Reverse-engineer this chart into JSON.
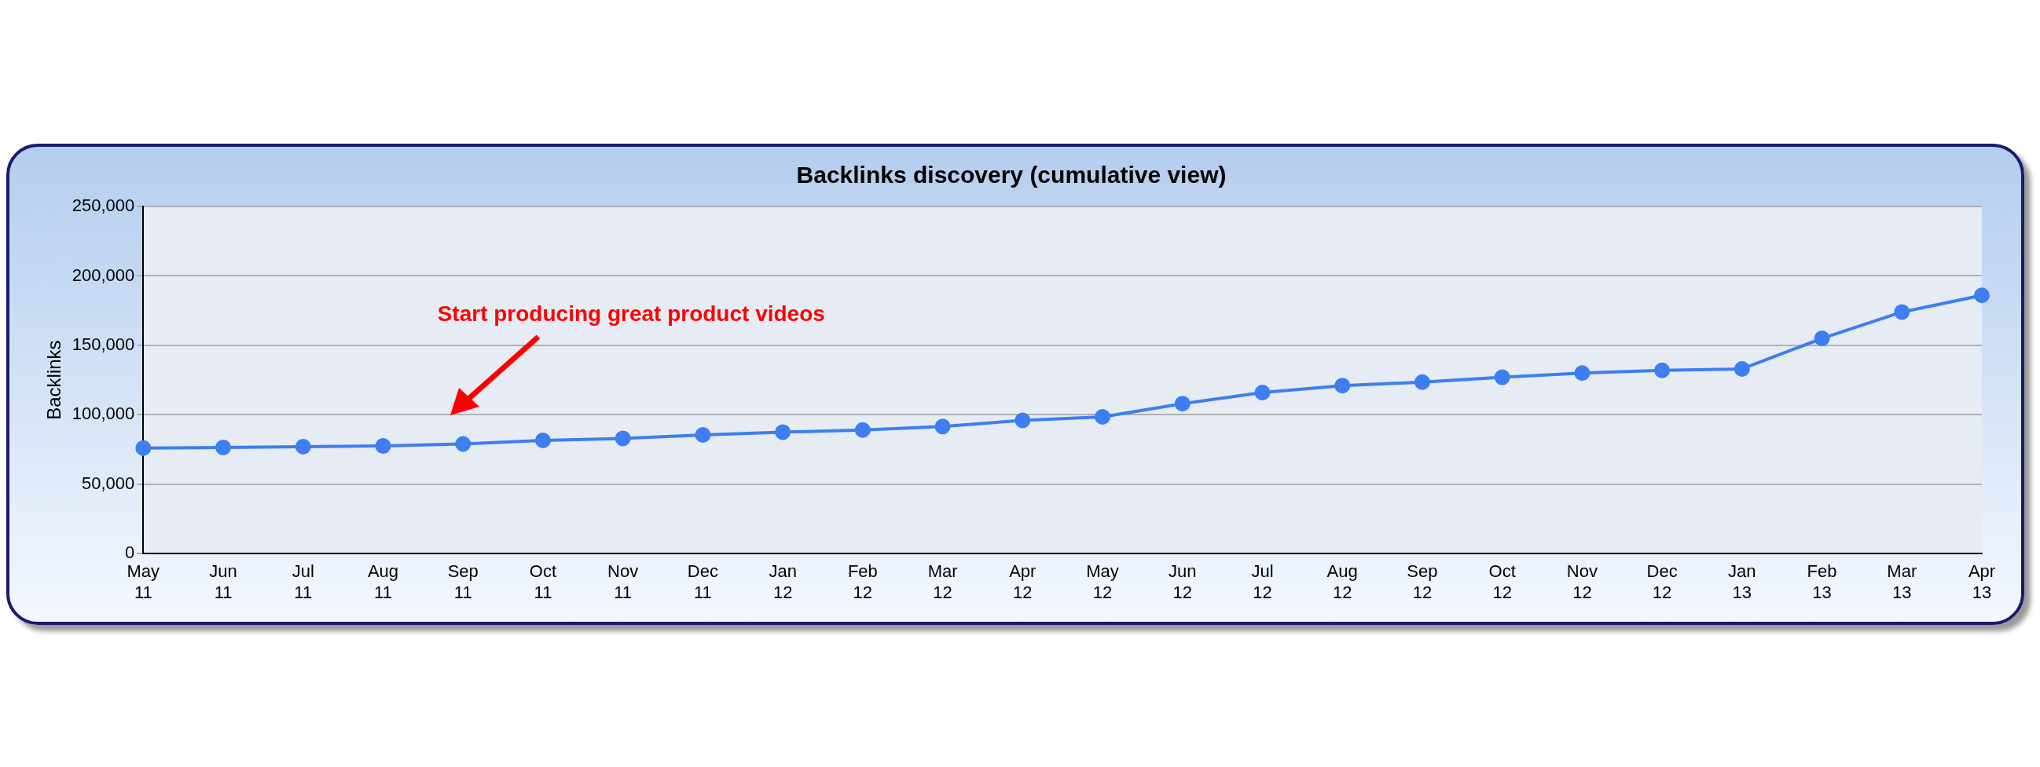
{
  "chart_data": {
    "type": "line",
    "title": "Backlinks discovery (cumulative view)",
    "ylabel": "Backlinks",
    "categories": [
      "May 11",
      "Jun 11",
      "Jul 11",
      "Aug 11",
      "Sep 11",
      "Oct 11",
      "Nov 11",
      "Dec 11",
      "Jan 12",
      "Feb 12",
      "Mar 12",
      "Apr 12",
      "May 12",
      "Jun 12",
      "Jul 12",
      "Aug 12",
      "Sep 12",
      "Oct 12",
      "Nov 12",
      "Dec 12",
      "Jan 13",
      "Feb 13",
      "Mar 13",
      "Apr 13"
    ],
    "series": [
      {
        "color": "#3d7ef0",
        "values": [
          76000,
          76500,
          77000,
          77500,
          79000,
          81500,
          83000,
          85500,
          87500,
          89000,
          91500,
          96000,
          98500,
          108000,
          116000,
          121000,
          123500,
          127000,
          130000,
          132000,
          133000,
          155000,
          174000,
          186000
        ]
      }
    ],
    "ylim": [
      0,
      250000
    ],
    "yticks": [
      {
        "value": 0,
        "label": "0"
      },
      {
        "value": 50000,
        "label": "50,000"
      },
      {
        "value": 100000,
        "label": "100,000"
      },
      {
        "value": 150000,
        "label": "150,000"
      },
      {
        "value": 200000,
        "label": "200,000"
      },
      {
        "value": 250000,
        "label": "250,000"
      }
    ],
    "grid": "y",
    "marker": "circle",
    "line_style": "solid",
    "legend": false,
    "annotations": [
      "Start producing great product videos"
    ]
  }
}
